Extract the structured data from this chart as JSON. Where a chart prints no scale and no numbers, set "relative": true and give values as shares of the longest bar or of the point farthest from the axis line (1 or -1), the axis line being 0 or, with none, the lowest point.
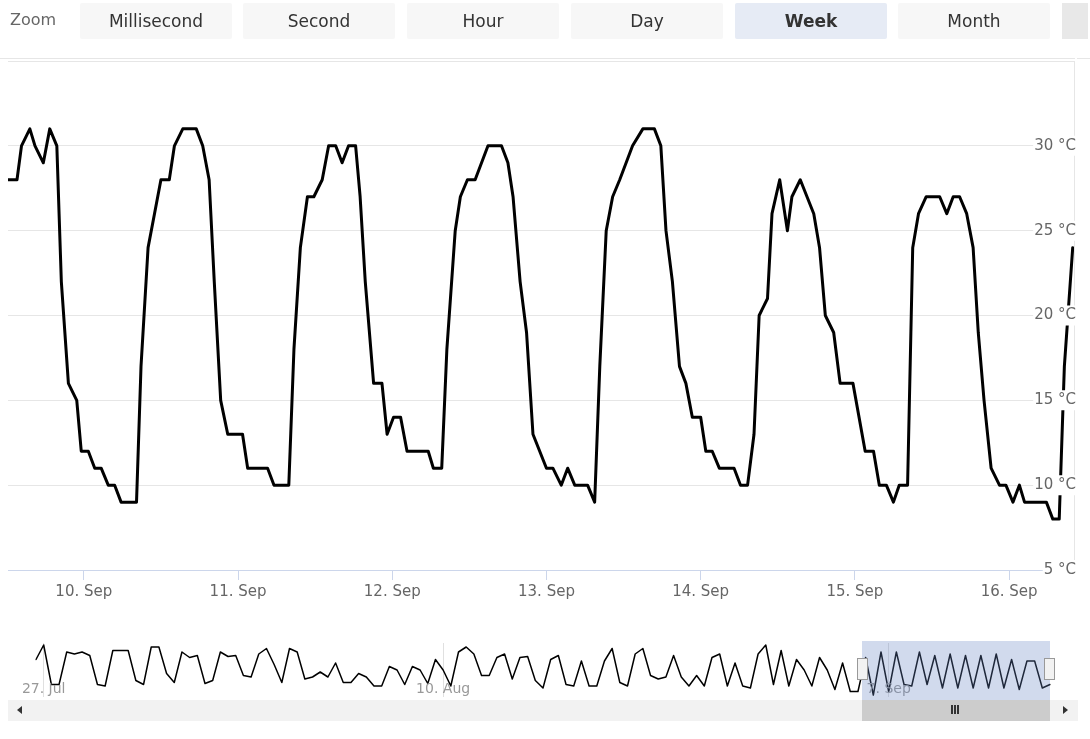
{
  "chart_data": [
    {
      "type": "line",
      "annotations": [
        "Zoom",
        "Millisecond",
        "Second",
        "Hour",
        "Day",
        "Week",
        "Month"
      ],
      "x": [
        "--09-09T12:18",
        "--09-09T13:36",
        "--09-09T14:18",
        "--09-09T15:36",
        "--09-09T16:24",
        "--09-09T17:42",
        "--09-09T18:42",
        "--09-09T19:48",
        "--09-09T20:30",
        "--09-09T21:36",
        "--09-09T22:54",
        "--09-09T23:36",
        "--09-10T00:42",
        "--09-10T01:42",
        "--09-10T02:42",
        "--09-10T03:48",
        "--09-10T04:48",
        "--09-10T05:48",
        "--09-10T08:12",
        "--09-10T08:54",
        "--09-10T10:00",
        "--09-10T11:00",
        "--09-10T12:00",
        "--09-10T13:18",
        "--09-10T14:06",
        "--09-10T15:24",
        "--09-10T17:30",
        "--09-10T18:30",
        "--09-10T19:30",
        "--09-10T20:18",
        "--09-10T21:18",
        "--09-10T22:24",
        "--09-11T00:42",
        "--09-11T01:30",
        "--09-11T04:36",
        "--09-11T05:36",
        "--09-11T07:54",
        "--09-11T08:42",
        "--09-11T09:42",
        "--09-11T10:48",
        "--09-11T11:48",
        "--09-11T13:06",
        "--09-11T14:06",
        "--09-11T15:12",
        "--09-11T16:12",
        "--09-11T17:12",
        "--09-11T18:18",
        "--09-11T19:00",
        "--09-11T19:48",
        "--09-11T21:06",
        "--09-11T22:24",
        "--09-11T23:12",
        "--09-12T00:12",
        "--09-12T01:18",
        "--09-12T02:18",
        "--09-12T05:36",
        "--09-12T06:24",
        "--09-12T07:42",
        "--09-12T08:30",
        "--09-12T09:48",
        "--09-12T10:36",
        "--09-12T11:42",
        "--09-12T12:54",
        "--09-12T14:54",
        "--09-12T17:00",
        "--09-12T18:00",
        "--09-12T18:48",
        "--09-12T19:54",
        "--09-12T20:54",
        "--09-12T21:54",
        "--09-13T00:00",
        "--09-13T01:00",
        "--09-13T02:18",
        "--09-13T03:18",
        "--09-13T04:24",
        "--09-13T06:24",
        "--09-13T07:30",
        "--09-13T08:18",
        "--09-13T09:18",
        "--09-13T10:18",
        "--09-13T11:24",
        "--09-13T13:24",
        "--09-13T15:00",
        "--09-13T16:48",
        "--09-13T17:48",
        "--09-13T18:36",
        "--09-13T19:36",
        "--09-13T20:42",
        "--09-13T21:42",
        "--09-13T22:42",
        "--09-14T00:00",
        "--09-14T00:48",
        "--09-14T01:48",
        "--09-14T02:54",
        "--09-14T05:12",
        "--09-14T06:12",
        "--09-14T07:18",
        "--09-14T08:18",
        "--09-14T09:06",
        "--09-14T10:24",
        "--09-14T11:06",
        "--09-14T12:18",
        "--09-14T13:30",
        "--09-14T14:12",
        "--09-14T15:30",
        "--09-14T17:36",
        "--09-14T18:30",
        "--09-14T19:24",
        "--09-14T20:42",
        "--09-14T21:42",
        "--09-14T23:42",
        "--09-15T01:36",
        "--09-15T02:54",
        "--09-15T03:48",
        "--09-15T04:54",
        "--09-15T06:00",
        "--09-15T06:54",
        "--09-15T08:12",
        "--09-15T09:00",
        "--09-15T09:54",
        "--09-15T11:06",
        "--09-15T13:12",
        "--09-15T14:18",
        "--09-15T15:18",
        "--09-15T16:18",
        "--09-15T17:24",
        "--09-15T18:24",
        "--09-15T19:12",
        "--09-15T20:06",
        "--09-15T21:12",
        "--09-15T22:30",
        "--09-15T23:30",
        "--09-16T00:36",
        "--09-16T01:36",
        "--09-16T02:24",
        "--09-16T05:48",
        "--09-16T06:48",
        "--09-16T07:48",
        "--09-16T08:36",
        "--09-16T09:54"
      ],
      "series": [
        {
          "color": "#000000",
          "values": [
            28,
            28,
            30,
            31,
            30,
            29,
            31,
            30,
            22,
            16,
            15,
            12,
            12,
            11,
            11,
            10,
            10,
            9,
            9,
            17,
            24,
            26,
            28,
            28,
            30,
            31,
            31,
            30,
            28,
            22,
            15,
            13,
            13,
            11,
            11,
            10,
            10,
            18,
            24,
            27,
            27,
            28,
            30,
            30,
            29,
            30,
            30,
            27,
            22,
            16,
            16,
            13,
            14,
            14,
            12,
            12,
            11,
            11,
            18,
            25,
            27,
            28,
            28,
            30,
            30,
            29,
            27,
            22,
            19,
            13,
            11,
            11,
            10,
            11,
            10,
            10,
            9,
            17,
            25,
            27,
            28,
            30,
            31,
            31,
            30,
            25,
            22,
            17,
            16,
            14,
            14,
            12,
            12,
            11,
            11,
            10,
            10,
            13,
            20,
            21,
            26,
            28,
            25,
            27,
            28,
            26,
            24,
            20,
            19,
            16,
            16,
            12,
            12,
            10,
            10,
            9,
            10,
            10,
            24,
            26,
            27,
            27,
            26,
            27,
            27,
            26,
            24,
            19,
            15,
            11,
            10,
            10,
            9,
            10,
            9,
            9,
            8,
            8,
            17,
            24
          ]
        }
      ],
      "xlim": [
        "--09-09T12:12",
        "--09-16T10:06"
      ],
      "xticks": [
        {
          "value": "--09-10",
          "label": "10. Sep"
        },
        {
          "value": "--09-11",
          "label": "11. Sep"
        },
        {
          "value": "--09-12",
          "label": "12. Sep"
        },
        {
          "value": "--09-13",
          "label": "13. Sep"
        },
        {
          "value": "--09-14",
          "label": "14. Sep"
        },
        {
          "value": "--09-15",
          "label": "15. Sep"
        },
        {
          "value": "--09-16",
          "label": "16. Sep"
        }
      ],
      "ylim": [
        5,
        35
      ],
      "yticks": [
        {
          "value": 5,
          "label": "5 °C"
        },
        {
          "value": 10,
          "label": "10 °C"
        },
        {
          "value": 15,
          "label": "15 °C"
        },
        {
          "value": 20,
          "label": "20 °C"
        },
        {
          "value": 25,
          "label": "25 °C"
        },
        {
          "value": 30,
          "label": "30 °C"
        },
        {
          "value": 35,
          "label": null
        }
      ],
      "grid": "y",
      "legend": false,
      "marker": "none",
      "line_style": "solid"
    },
    {
      "type": "line",
      "relative": true,
      "categories": [
        null,
        "27. Jul",
        null,
        null,
        null,
        null,
        null,
        null,
        null,
        null,
        null,
        null,
        null,
        null,
        null,
        null,
        null,
        null,
        null,
        null,
        null,
        null,
        null,
        null,
        null,
        null,
        null,
        null,
        null,
        null,
        null,
        null,
        null,
        null,
        null,
        null,
        null,
        null,
        null,
        null,
        null,
        null,
        null,
        null,
        null,
        null,
        null,
        null,
        null,
        null,
        null,
        null,
        null,
        "10. Aug",
        null,
        null,
        null,
        null,
        null,
        null,
        null,
        null,
        null,
        null,
        null,
        null,
        null,
        null,
        null,
        null,
        null,
        null,
        null,
        null,
        null,
        null,
        null,
        null,
        null,
        null,
        null,
        null,
        null,
        null,
        null,
        null,
        null,
        null,
        null,
        null,
        null,
        null,
        null,
        null,
        null,
        null,
        null,
        null,
        null,
        null,
        null,
        null,
        null,
        null,
        null,
        null,
        null,
        null,
        null,
        null,
        null,
        "7. Sep",
        null,
        null,
        null,
        null,
        null,
        null,
        null,
        null,
        null,
        null,
        null,
        null,
        null,
        null,
        null,
        null,
        null,
        null,
        null,
        null,
        null
      ],
      "series": [
        {
          "color": "#000000",
          "values": [
            0.71,
            1.0,
            0.21,
            0.21,
            0.86,
            0.82,
            0.86,
            0.79,
            0.21,
            0.18,
            0.89,
            0.89,
            0.89,
            0.29,
            0.21,
            0.96,
            0.96,
            0.43,
            0.25,
            0.86,
            0.75,
            0.79,
            0.23,
            0.29,
            0.86,
            0.77,
            0.79,
            0.39,
            0.36,
            0.82,
            0.93,
            0.61,
            0.25,
            0.93,
            0.86,
            0.32,
            0.36,
            0.46,
            0.36,
            0.64,
            0.25,
            0.25,
            0.43,
            0.36,
            0.18,
            0.18,
            0.57,
            0.5,
            0.21,
            0.57,
            0.5,
            0.23,
            0.71,
            0.5,
            0.18,
            0.86,
            0.96,
            0.82,
            0.39,
            0.39,
            0.75,
            0.82,
            0.32,
            0.75,
            0.77,
            0.29,
            0.14,
            0.71,
            0.79,
            0.21,
            0.18,
            0.68,
            0.18,
            0.18,
            0.68,
            0.93,
            0.25,
            0.18,
            0.82,
            0.93,
            0.39,
            0.32,
            0.36,
            0.79,
            0.36,
            0.18,
            0.39,
            0.18,
            0.75,
            0.82,
            0.18,
            0.64,
            0.18,
            0.14,
            0.82,
            1.0,
            0.21,
            0.89,
            0.18,
            0.71,
            0.5,
            0.18,
            0.75,
            0.5,
            0.11,
            0.64,
            0.07,
            0.07,
            0.75,
            0,
            0.86,
            0.07,
            0.86,
            0.21,
            0.18,
            0.86,
            0.21,
            0.79,
            0.14,
            0.82,
            0.14,
            0.79,
            0.14,
            0.79,
            0.14,
            0.82,
            0.14,
            0.71,
            0.11,
            0.68,
            0.68,
            0.14,
            0.21
          ]
        }
      ],
      "grid": "x",
      "legend": false,
      "marker": "none",
      "line_style": "solid",
      "tick_labels": "x"
    }
  ]
}
